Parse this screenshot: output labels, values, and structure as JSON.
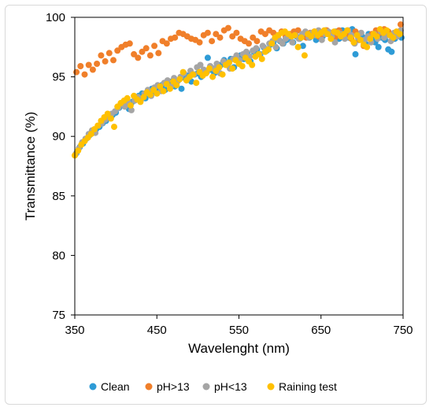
{
  "chart_data": {
    "type": "scatter",
    "title": "",
    "xlabel": "Wavelenght (nm)",
    "ylabel": "Transmittance (%)",
    "xlim": [
      350,
      750
    ],
    "ylim": [
      75,
      100
    ],
    "xticks": [
      350,
      450,
      550,
      650,
      750
    ],
    "yticks": [
      75,
      80,
      85,
      90,
      95,
      100
    ],
    "grid": false,
    "legend_position": "bottom",
    "series": [
      {
        "name": "Clean",
        "color": "#2e9bd6",
        "x": [
          352,
          356,
          360,
          364,
          368,
          372,
          376,
          380,
          384,
          388,
          392,
          396,
          400,
          404,
          408,
          412,
          416,
          420,
          424,
          428,
          432,
          436,
          440,
          444,
          448,
          452,
          456,
          460,
          464,
          468,
          472,
          476,
          480,
          484,
          488,
          492,
          496,
          500,
          504,
          508,
          512,
          516,
          520,
          524,
          528,
          532,
          536,
          540,
          544,
          548,
          552,
          556,
          560,
          564,
          568,
          572,
          576,
          580,
          584,
          588,
          592,
          596,
          600,
          604,
          608,
          612,
          616,
          620,
          624,
          628,
          632,
          636,
          640,
          644,
          648,
          652,
          656,
          660,
          664,
          668,
          672,
          676,
          680,
          684,
          688,
          692,
          696,
          700,
          704,
          708,
          712,
          716,
          720,
          724,
          728,
          732,
          736,
          740,
          744,
          748
        ],
        "y": [
          88.6,
          89.1,
          89.4,
          89.8,
          90.1,
          90.3,
          90.6,
          90.8,
          91.1,
          91.3,
          91.6,
          91.8,
          92.0,
          92.4,
          92.6,
          92.8,
          92.3,
          92.9,
          93.1,
          93.4,
          93.6,
          93.2,
          93.8,
          94.0,
          93.7,
          94.1,
          94.3,
          93.9,
          94.5,
          94.6,
          94.2,
          94.7,
          94.0,
          94.9,
          95.1,
          94.6,
          95.2,
          95.3,
          95.0,
          95.5,
          96.6,
          95.6,
          95.3,
          95.9,
          96.0,
          96.4,
          96.1,
          96.5,
          95.8,
          96.6,
          96.8,
          96.5,
          97.0,
          96.3,
          97.1,
          97.3,
          96.9,
          97.5,
          97.2,
          97.7,
          97.9,
          97.4,
          98.0,
          97.8,
          98.1,
          98.3,
          97.9,
          98.4,
          98.2,
          97.6,
          98.5,
          98.3,
          98.7,
          98.1,
          98.8,
          98.4,
          98.9,
          98.6,
          98.7,
          98.8,
          98.2,
          98.9,
          98.5,
          98.3,
          99.0,
          96.9,
          98.1,
          98.4,
          97.8,
          98.6,
          98.2,
          97.9,
          97.5,
          98.3,
          98.1,
          97.3,
          97.1,
          98.2,
          98.6,
          98.3
        ]
      },
      {
        "name": "pH>13",
        "color": "#f07f2a",
        "x": [
          352,
          357,
          362,
          367,
          372,
          377,
          382,
          387,
          392,
          397,
          402,
          407,
          412,
          417,
          422,
          427,
          432,
          437,
          442,
          447,
          452,
          457,
          462,
          467,
          472,
          477,
          482,
          487,
          492,
          497,
          502,
          507,
          512,
          517,
          522,
          527,
          532,
          537,
          542,
          547,
          552,
          557,
          562,
          567,
          572,
          577,
          582,
          587,
          592,
          597,
          602,
          607,
          612,
          617,
          622,
          627,
          632,
          637,
          642,
          647,
          652,
          657,
          662,
          667,
          672,
          677,
          682,
          687,
          692,
          697,
          702,
          707,
          712,
          717,
          722,
          727,
          732,
          737,
          742,
          747
        ],
        "y": [
          95.4,
          95.9,
          95.2,
          96.0,
          95.6,
          96.1,
          96.8,
          96.3,
          97.0,
          96.4,
          97.2,
          97.5,
          97.7,
          97.8,
          96.9,
          96.6,
          97.1,
          97.4,
          96.8,
          97.6,
          97.0,
          98.0,
          97.8,
          98.2,
          98.3,
          98.7,
          98.6,
          98.4,
          98.2,
          98.1,
          97.9,
          98.5,
          98.7,
          98.0,
          98.6,
          98.3,
          98.9,
          99.1,
          98.4,
          98.7,
          98.2,
          98.0,
          97.8,
          98.3,
          98.0,
          98.8,
          98.6,
          98.9,
          98.7,
          98.5,
          98.8,
          98.4,
          98.6,
          98.8,
          98.9,
          98.5,
          98.3,
          98.7,
          98.8,
          98.4,
          98.6,
          98.9,
          98.7,
          98.3,
          98.9,
          98.5,
          98.6,
          98.2,
          98.8,
          98.1,
          97.6,
          98.3,
          98.6,
          98.9,
          98.7,
          99.0,
          98.8,
          98.2,
          98.6,
          99.4
        ]
      },
      {
        "name": "pH<13",
        "color": "#a5a5a5",
        "x": [
          351,
          355,
          359,
          363,
          367,
          371,
          375,
          379,
          383,
          387,
          391,
          395,
          399,
          403,
          407,
          411,
          415,
          419,
          423,
          427,
          431,
          435,
          439,
          443,
          447,
          451,
          455,
          459,
          463,
          467,
          471,
          475,
          479,
          483,
          487,
          491,
          495,
          499,
          503,
          507,
          511,
          515,
          519,
          523,
          527,
          531,
          535,
          539,
          543,
          547,
          551,
          555,
          559,
          563,
          567,
          571,
          575,
          579,
          583,
          587,
          591,
          595,
          599,
          603,
          607,
          611,
          615,
          619,
          623,
          627,
          631,
          635,
          639,
          643,
          647,
          651,
          655,
          659,
          663,
          667,
          671,
          675,
          679,
          683,
          687,
          691,
          695,
          699,
          703,
          707,
          711,
          715,
          719,
          723,
          727,
          731,
          735,
          739,
          743,
          747
        ],
        "y": [
          88.5,
          89.0,
          89.5,
          89.8,
          90.2,
          90.5,
          90.3,
          90.9,
          91.1,
          91.4,
          91.6,
          91.9,
          92.1,
          92.4,
          92.7,
          92.5,
          92.9,
          92.2,
          93.0,
          93.3,
          93.1,
          93.6,
          93.9,
          93.4,
          94.1,
          94.3,
          93.8,
          94.5,
          94.7,
          94.2,
          94.9,
          94.6,
          95.0,
          95.3,
          94.8,
          95.5,
          95.2,
          95.8,
          96.0,
          95.6,
          95.4,
          95.9,
          95.7,
          96.1,
          95.3,
          96.3,
          96.0,
          95.7,
          96.5,
          96.8,
          96.4,
          96.9,
          97.1,
          96.7,
          97.2,
          97.4,
          96.9,
          97.6,
          97.3,
          97.8,
          98.0,
          97.5,
          98.1,
          97.8,
          98.2,
          98.4,
          97.9,
          98.5,
          98.2,
          98.6,
          98.8,
          98.3,
          98.7,
          98.5,
          98.9,
          98.1,
          98.6,
          98.8,
          98.4,
          97.9,
          98.7,
          98.6,
          98.2,
          98.9,
          98.5,
          97.8,
          98.3,
          98.7,
          98.1,
          98.4,
          97.9,
          98.6,
          98.2,
          98.8,
          98.3,
          98.5,
          98.0,
          98.7,
          98.4,
          98.9
        ]
      },
      {
        "name": "Raining test",
        "color": "#ffc000",
        "x": [
          350,
          354,
          358,
          362,
          366,
          370,
          374,
          378,
          382,
          386,
          390,
          394,
          398,
          402,
          406,
          410,
          414,
          418,
          422,
          426,
          430,
          434,
          438,
          442,
          446,
          450,
          454,
          458,
          462,
          466,
          470,
          474,
          478,
          482,
          486,
          490,
          494,
          498,
          502,
          506,
          510,
          514,
          518,
          522,
          526,
          530,
          534,
          538,
          542,
          546,
          550,
          554,
          558,
          562,
          566,
          570,
          574,
          578,
          582,
          586,
          590,
          594,
          598,
          602,
          606,
          610,
          614,
          618,
          622,
          626,
          630,
          634,
          638,
          642,
          646,
          650,
          654,
          658,
          662,
          666,
          670,
          674,
          678,
          682,
          686,
          690,
          694,
          698,
          702,
          706,
          710,
          714,
          718,
          722,
          726,
          730,
          734,
          738,
          742,
          746
        ],
        "y": [
          88.4,
          88.8,
          89.3,
          89.6,
          89.9,
          90.2,
          90.6,
          90.9,
          91.3,
          91.6,
          91.9,
          91.5,
          90.8,
          92.5,
          92.8,
          93.0,
          93.2,
          92.6,
          93.4,
          93.1,
          92.9,
          93.3,
          93.7,
          93.5,
          93.9,
          93.6,
          94.2,
          93.8,
          94.4,
          94.0,
          94.6,
          94.3,
          94.8,
          95.4,
          94.7,
          95.0,
          95.2,
          94.5,
          95.4,
          95.1,
          95.3,
          95.7,
          95.0,
          95.5,
          95.8,
          95.2,
          96.0,
          96.2,
          95.7,
          96.4,
          96.1,
          95.9,
          96.6,
          96.3,
          96.0,
          96.7,
          96.9,
          96.5,
          97.1,
          97.3,
          97.8,
          98.3,
          98.5,
          98.7,
          98.8,
          98.6,
          98.4,
          98.5,
          97.5,
          98.3,
          96.8,
          98.6,
          98.4,
          98.8,
          98.5,
          98.7,
          98.9,
          98.6,
          98.2,
          98.8,
          98.7,
          98.4,
          98.6,
          98.9,
          98.3,
          97.9,
          98.5,
          98.1,
          97.7,
          97.5,
          98.2,
          98.6,
          98.4,
          99.0,
          98.7,
          98.9,
          98.5,
          98.3,
          98.8,
          98.6
        ]
      }
    ]
  }
}
